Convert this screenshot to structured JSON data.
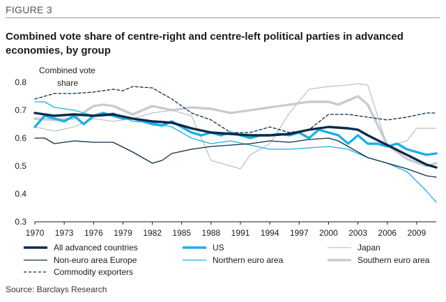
{
  "figure_label": "FIGURE 3",
  "title_line1": "Combined vote share of centre-right and centre-left political parties in advanced",
  "title_line2": "economies, by group",
  "source": "Source: Barclays Research",
  "chart_data": {
    "type": "line",
    "ylabel_line1": "Combined vote",
    "ylabel_line2": "share",
    "xlabel": "",
    "ylim": [
      0.3,
      0.8
    ],
    "xlim": [
      1970,
      2011
    ],
    "y_ticks": [
      0.3,
      0.4,
      0.5,
      0.6,
      0.7,
      0.8
    ],
    "y_tick_labels": [
      "0.3",
      "0.4",
      "0.5",
      "0.6",
      "0.7",
      "0.8"
    ],
    "x_ticks": [
      1970,
      1973,
      1976,
      1979,
      1982,
      1985,
      1988,
      1991,
      1994,
      1997,
      2000,
      2003,
      2006,
      2009
    ],
    "x_tick_labels": [
      "1970",
      "1973",
      "1976",
      "1979",
      "1982",
      "1985",
      "1988",
      "1991",
      "1994",
      "1997",
      "2000",
      "2003",
      "2006",
      "2009"
    ],
    "grid": false,
    "legend_position": "bottom",
    "series": [
      {
        "name": "All advanced countries",
        "color": "#0b2a4a",
        "style": "solid",
        "weight": "thick",
        "x": [
          1970,
          1972,
          1974,
          1976,
          1978,
          1980,
          1982,
          1984,
          1986,
          1988,
          1990,
          1992,
          1994,
          1996,
          1998,
          2000,
          2002,
          2003,
          2004,
          2006,
          2008,
          2010,
          2011
        ],
        "y": [
          0.69,
          0.68,
          0.685,
          0.68,
          0.685,
          0.67,
          0.66,
          0.655,
          0.635,
          0.62,
          0.615,
          0.61,
          0.61,
          0.615,
          0.63,
          0.64,
          0.635,
          0.63,
          0.61,
          0.575,
          0.54,
          0.505,
          0.495
        ]
      },
      {
        "name": "US",
        "color": "#19b0e8",
        "style": "solid",
        "weight": "thick",
        "x": [
          1970,
          1971,
          1972,
          1973,
          1974,
          1975,
          1976,
          1977,
          1978,
          1979,
          1980,
          1981,
          1982,
          1983,
          1984,
          1985,
          1986,
          1987,
          1988,
          1989,
          1990,
          1991,
          1992,
          1993,
          1994,
          1995,
          1996,
          1997,
          1998,
          1999,
          2000,
          2001,
          2002,
          2003,
          2004,
          2005,
          2006,
          2007,
          2008,
          2009,
          2010,
          2011
        ],
        "y": [
          0.64,
          0.68,
          0.67,
          0.66,
          0.68,
          0.65,
          0.68,
          0.69,
          0.68,
          0.67,
          0.67,
          0.66,
          0.65,
          0.645,
          0.66,
          0.64,
          0.62,
          0.61,
          0.62,
          0.61,
          0.62,
          0.61,
          0.6,
          0.61,
          0.61,
          0.615,
          0.61,
          0.62,
          0.6,
          0.63,
          0.62,
          0.61,
          0.58,
          0.61,
          0.58,
          0.58,
          0.57,
          0.58,
          0.56,
          0.55,
          0.54,
          0.545
        ]
      },
      {
        "name": "Japan",
        "color": "#bcc3c8",
        "style": "solid",
        "weight": "thin",
        "x": [
          1970,
          1972,
          1974,
          1976,
          1978,
          1980,
          1982,
          1984,
          1986,
          1988,
          1990,
          1991,
          1992,
          1994,
          1996,
          1998,
          2000,
          2002,
          2003,
          2004,
          2006,
          2008,
          2009,
          2011
        ],
        "y": [
          0.64,
          0.625,
          0.64,
          0.67,
          0.66,
          0.67,
          0.69,
          0.7,
          0.68,
          0.52,
          0.5,
          0.49,
          0.54,
          0.58,
          0.69,
          0.775,
          0.785,
          0.79,
          0.795,
          0.79,
          0.57,
          0.59,
          0.635,
          0.635
        ]
      },
      {
        "name": "Non-euro area Europe",
        "color": "#0b2a4a",
        "style": "solid",
        "weight": "thin",
        "x": [
          1970,
          1971,
          1972,
          1974,
          1976,
          1978,
          1980,
          1982,
          1983,
          1984,
          1986,
          1988,
          1990,
          1992,
          1994,
          1996,
          1998,
          2000,
          2001,
          2002,
          2004,
          2006,
          2008,
          2010,
          2011
        ],
        "y": [
          0.6,
          0.6,
          0.58,
          0.59,
          0.585,
          0.585,
          0.55,
          0.51,
          0.52,
          0.545,
          0.56,
          0.57,
          0.575,
          0.58,
          0.59,
          0.585,
          0.595,
          0.6,
          0.59,
          0.57,
          0.53,
          0.51,
          0.49,
          0.465,
          0.46
        ]
      },
      {
        "name": "Northern euro area",
        "color": "#19b0e8",
        "style": "solid",
        "weight": "thin",
        "x": [
          1970,
          1971,
          1972,
          1974,
          1976,
          1978,
          1980,
          1982,
          1984,
          1986,
          1988,
          1990,
          1992,
          1994,
          1996,
          1998,
          2000,
          2002,
          2004,
          2006,
          2008,
          2010,
          2011
        ],
        "y": [
          0.73,
          0.73,
          0.71,
          0.7,
          0.68,
          0.69,
          0.66,
          0.655,
          0.64,
          0.6,
          0.58,
          0.59,
          0.575,
          0.56,
          0.56,
          0.565,
          0.57,
          0.56,
          0.53,
          0.51,
          0.48,
          0.41,
          0.37
        ]
      },
      {
        "name": "Southern euro area",
        "color": "#c7ccd0",
        "style": "solid",
        "weight": "thick",
        "x": [
          1970,
          1972,
          1974,
          1976,
          1977,
          1978,
          1980,
          1982,
          1984,
          1986,
          1988,
          1990,
          1992,
          1994,
          1996,
          1998,
          2000,
          2001,
          2002,
          2003,
          2004,
          2006,
          2008,
          2010,
          2011
        ],
        "y": [
          0.67,
          0.665,
          0.67,
          0.715,
          0.72,
          0.715,
          0.685,
          0.715,
          0.7,
          0.71,
          0.705,
          0.69,
          0.7,
          0.71,
          0.72,
          0.73,
          0.73,
          0.72,
          0.735,
          0.75,
          0.72,
          0.575,
          0.525,
          0.5,
          0.51
        ]
      },
      {
        "name": "Commodity exporters",
        "color": "#0b2a4a",
        "style": "dashed",
        "weight": "thin",
        "x": [
          1970,
          1972,
          1974,
          1976,
          1978,
          1979,
          1980,
          1982,
          1984,
          1986,
          1988,
          1990,
          1992,
          1994,
          1996,
          1998,
          2000,
          2002,
          2004,
          2006,
          2008,
          2010,
          2011
        ],
        "y": [
          0.74,
          0.76,
          0.76,
          0.765,
          0.775,
          0.77,
          0.785,
          0.78,
          0.74,
          0.69,
          0.665,
          0.62,
          0.62,
          0.64,
          0.62,
          0.63,
          0.685,
          0.685,
          0.675,
          0.665,
          0.675,
          0.69,
          0.69
        ]
      }
    ]
  }
}
